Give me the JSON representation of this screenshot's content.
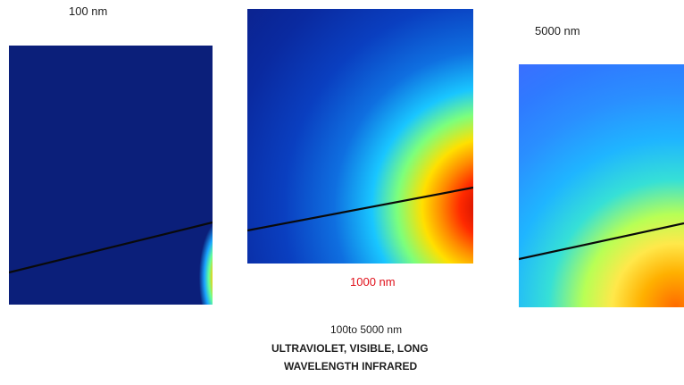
{
  "labels": {
    "panel_1": "100 nm",
    "panel_2": "1000 nm",
    "panel_3": "5000 nm"
  },
  "caption": {
    "line_1": "100to 5000 nm",
    "line_2": "ULTRAVIOLET, VISIBLE,  LONG",
    "line_3": "WAVELENGTH  INFRARED"
  },
  "colors": {
    "label_1000": "#e0101a",
    "field_low": "#0b1f7a",
    "field_high": "#b40000"
  }
}
